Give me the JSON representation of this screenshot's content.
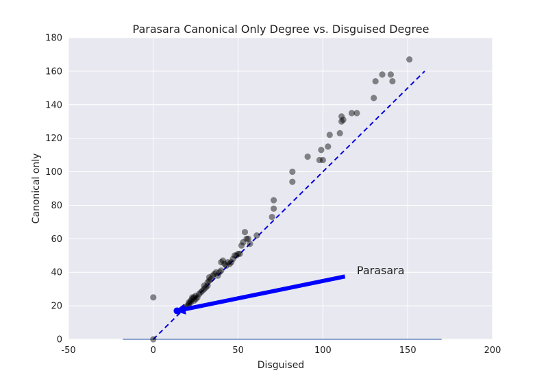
{
  "chart_data": {
    "type": "scatter",
    "title": "Parasara Canonical Only Degree vs. Disguised Degree",
    "xlabel": "Disguised",
    "ylabel": "Canonical only",
    "xlim": [
      -50,
      200
    ],
    "ylim": [
      0,
      180
    ],
    "xticks": [
      "-50",
      "0",
      "50",
      "100",
      "150",
      "200"
    ],
    "yticks": [
      "0",
      "20",
      "40",
      "60",
      "80",
      "100",
      "120",
      "140",
      "160",
      "180"
    ],
    "xtick_values": [
      -50,
      0,
      50,
      100,
      150,
      200
    ],
    "ytick_values": [
      0,
      20,
      40,
      60,
      80,
      100,
      120,
      140,
      160,
      180
    ],
    "grid": true,
    "background": "#e8e8f0",
    "grid_color": "#ffffff",
    "point_color": "#000000",
    "point_opacity": 0.45,
    "points": [
      [
        0,
        0
      ],
      [
        0,
        25
      ],
      [
        17,
        18
      ],
      [
        18,
        18
      ],
      [
        19,
        19
      ],
      [
        20,
        20
      ],
      [
        21,
        21
      ],
      [
        21,
        22
      ],
      [
        22,
        22
      ],
      [
        22,
        23
      ],
      [
        23,
        24
      ],
      [
        23,
        25
      ],
      [
        24,
        23
      ],
      [
        24,
        25
      ],
      [
        25,
        26
      ],
      [
        25,
        24
      ],
      [
        26,
        25
      ],
      [
        27,
        27
      ],
      [
        28,
        28
      ],
      [
        29,
        29
      ],
      [
        30,
        30
      ],
      [
        30,
        32
      ],
      [
        31,
        31
      ],
      [
        32,
        32
      ],
      [
        32,
        34
      ],
      [
        33,
        35
      ],
      [
        33,
        37
      ],
      [
        34,
        36
      ],
      [
        35,
        38
      ],
      [
        36,
        39
      ],
      [
        37,
        40
      ],
      [
        38,
        38
      ],
      [
        39,
        40
      ],
      [
        40,
        41
      ],
      [
        40,
        46
      ],
      [
        41,
        47
      ],
      [
        42,
        45
      ],
      [
        43,
        44
      ],
      [
        44,
        46
      ],
      [
        45,
        45
      ],
      [
        46,
        46
      ],
      [
        47,
        48
      ],
      [
        48,
        50
      ],
      [
        49,
        50
      ],
      [
        50,
        51
      ],
      [
        51,
        51
      ],
      [
        52,
        56
      ],
      [
        53,
        58
      ],
      [
        54,
        64
      ],
      [
        55,
        60
      ],
      [
        56,
        60
      ],
      [
        57,
        57
      ],
      [
        61,
        62
      ],
      [
        70,
        73
      ],
      [
        71,
        78
      ],
      [
        71,
        83
      ],
      [
        82,
        94
      ],
      [
        82,
        100
      ],
      [
        91,
        109
      ],
      [
        98,
        107
      ],
      [
        99,
        113
      ],
      [
        100,
        107
      ],
      [
        103,
        115
      ],
      [
        104,
        122
      ],
      [
        110,
        123
      ],
      [
        111,
        130
      ],
      [
        111,
        133
      ],
      [
        112,
        131
      ],
      [
        117,
        135
      ],
      [
        120,
        135
      ],
      [
        130,
        144
      ],
      [
        131,
        154
      ],
      [
        135,
        158
      ],
      [
        140,
        158
      ],
      [
        141,
        154
      ],
      [
        151,
        167
      ]
    ],
    "identity_line": {
      "x": [
        0,
        160
      ],
      "y": [
        0,
        160
      ],
      "color": "#0000dd",
      "style": "dashed"
    },
    "baseline": {
      "x": [
        -18,
        170
      ],
      "y": 0,
      "color": "#4c72b0"
    },
    "highlight": {
      "label": "Parasara",
      "x": 14,
      "y": 17,
      "color": "#0000ff"
    },
    "annotation": {
      "text": "Parasara",
      "text_x": 120,
      "text_y": 41,
      "arrow_from_x": 113,
      "arrow_from_y": 37.5,
      "color": "#0000ff"
    }
  }
}
